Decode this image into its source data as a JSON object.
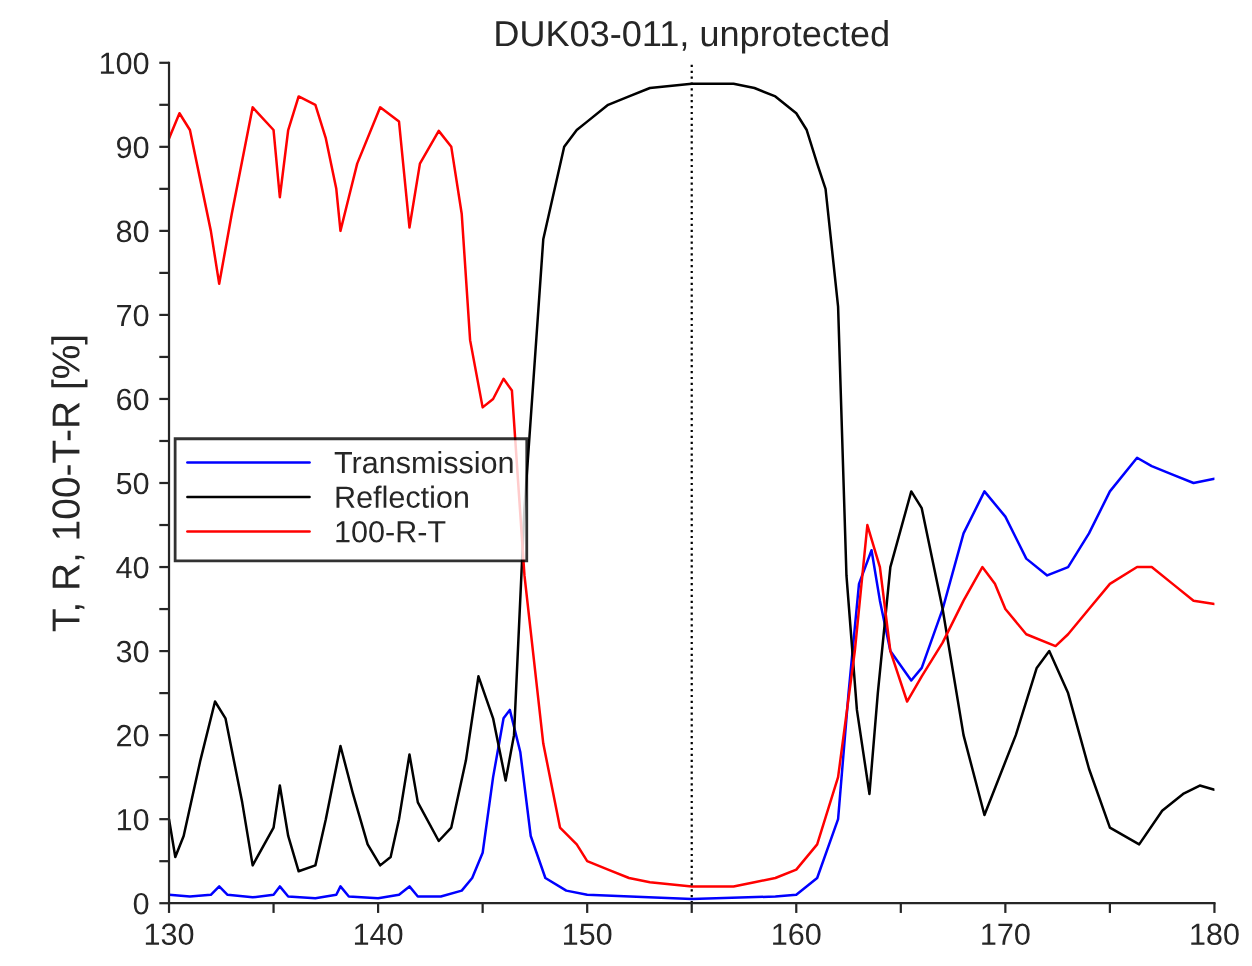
{
  "chart_data": {
    "type": "line",
    "title": "DUK03-011, unprotected",
    "ylabel": "T, R, 100-T-R [%]",
    "xlim": [
      130,
      180
    ],
    "ylim": [
      0,
      100
    ],
    "xticks": [
      130,
      {
        "value": 135,
        "label": null
      },
      140,
      {
        "value": 145,
        "label": null
      },
      150,
      {
        "value": 155,
        "label": null
      },
      160,
      {
        "value": 165,
        "label": null
      },
      170,
      {
        "value": 175,
        "label": null
      },
      180
    ],
    "yticks": [
      0,
      {
        "value": 5,
        "label": null
      },
      10,
      {
        "value": 15,
        "label": null
      },
      20,
      {
        "value": 25,
        "label": null
      },
      30,
      {
        "value": 35,
        "label": null
      },
      40,
      {
        "value": 45,
        "label": null
      },
      50,
      {
        "value": 55,
        "label": null
      },
      60,
      {
        "value": 65,
        "label": null
      },
      70,
      {
        "value": 75,
        "label": null
      },
      80,
      {
        "value": 85,
        "label": null
      },
      90,
      {
        "value": 95,
        "label": null
      },
      100
    ],
    "grid": false,
    "legend": "left",
    "marker": "none",
    "line_style": "solid",
    "ref_lines": [
      {
        "axis": "x",
        "value": 155,
        "label": null,
        "color": "#000000",
        "line_style": "dotted"
      }
    ],
    "series": [
      {
        "name": "Transmission",
        "color": "#0000ff",
        "x": [
          130,
          131,
          132,
          132.4,
          132.8,
          134,
          135,
          135.3,
          135.7,
          137,
          138,
          138.2,
          138.6,
          140,
          141,
          141.5,
          141.9,
          143,
          144,
          144.5,
          145,
          145.5,
          146,
          146.3,
          146.8,
          147.3,
          148,
          149,
          150,
          155,
          159,
          160,
          161,
          162,
          162.5,
          163,
          163.6,
          164,
          164.5,
          165.5,
          166,
          167,
          168,
          169,
          170,
          171,
          172,
          173,
          174,
          175,
          176.3,
          177,
          178,
          179,
          180
        ],
        "values": [
          1,
          0.8,
          1,
          2,
          1,
          0.7,
          1,
          2,
          0.8,
          0.6,
          1,
          2,
          0.8,
          0.6,
          1,
          2,
          0.8,
          0.8,
          1.5,
          3,
          6,
          15,
          22,
          23,
          18,
          8,
          3,
          1.5,
          1,
          0.5,
          0.8,
          1,
          3,
          10,
          25,
          38,
          42,
          36,
          30,
          26.5,
          28,
          35,
          44,
          49,
          46,
          41,
          39,
          40,
          44,
          49,
          53,
          52,
          51,
          50,
          50.5
        ]
      },
      {
        "name": "Reflection",
        "color": "#000000",
        "x": [
          130,
          130.3,
          130.7,
          131.5,
          132.2,
          132.7,
          133.5,
          134,
          135,
          135.3,
          135.7,
          136.2,
          137,
          137.5,
          138.2,
          138.8,
          139.5,
          140.1,
          140.6,
          141,
          141.5,
          141.9,
          142.9,
          143.5,
          144.2,
          144.8,
          145.5,
          146.1,
          146.5,
          147,
          147.9,
          148.9,
          149.5,
          150,
          151,
          152,
          153,
          155,
          157,
          158,
          159,
          160,
          160.5,
          161,
          161.4,
          162,
          162.4,
          162.9,
          163.5,
          163.9,
          164.5,
          165.5,
          166,
          167,
          168,
          169,
          170.5,
          171.5,
          172.1,
          173,
          174,
          175,
          176.4,
          177.5,
          178.5,
          179.3,
          180
        ],
        "values": [
          10,
          5.5,
          8,
          17,
          24,
          22,
          12,
          4.5,
          9,
          14,
          8,
          3.8,
          4.5,
          10,
          18.7,
          13,
          7,
          4.5,
          5.5,
          10,
          17.7,
          12,
          7.4,
          9,
          17,
          27,
          22,
          14.6,
          20,
          47,
          79,
          90,
          92,
          93,
          95,
          96,
          97,
          97.5,
          97.5,
          97,
          96,
          94,
          92,
          88,
          85,
          71,
          39,
          23,
          13,
          25,
          40,
          49,
          47,
          35,
          20,
          10.5,
          20,
          28,
          30,
          25,
          16,
          9,
          7,
          11,
          13,
          14,
          13.5
        ]
      },
      {
        "name": "100-R-T",
        "color": "#ff0000",
        "x": [
          130,
          130.5,
          131,
          132,
          132.4,
          133,
          134,
          135,
          135.3,
          135.7,
          136.2,
          137,
          137.5,
          138,
          138.2,
          138.6,
          139,
          140.1,
          141,
          141.5,
          142,
          142.9,
          143.5,
          144,
          144.4,
          145,
          145.5,
          146,
          146.4,
          147,
          147.9,
          148.7,
          149.5,
          150,
          151,
          152,
          153,
          155,
          157,
          158,
          159,
          160,
          161,
          162,
          162.8,
          163.4,
          164,
          164.5,
          165.3,
          166,
          167,
          168,
          168.9,
          169.5,
          170,
          171,
          172.4,
          173,
          174,
          175,
          176.3,
          177,
          178,
          179,
          180
        ],
        "values": [
          91,
          94,
          92,
          80,
          73.7,
          82,
          94.7,
          92,
          84,
          92,
          96,
          95,
          91,
          85,
          80,
          84,
          88,
          94.7,
          93,
          80.4,
          88,
          91.9,
          90,
          82,
          67,
          59,
          60,
          62.4,
          61,
          39,
          19,
          9,
          7,
          5,
          4,
          3,
          2.5,
          2,
          2,
          2.5,
          3,
          4,
          7,
          15,
          30,
          45,
          40,
          30,
          24,
          27,
          31,
          36,
          40,
          38,
          35,
          32,
          30.6,
          32,
          35,
          38,
          40,
          40,
          38,
          36,
          35.6
        ]
      }
    ]
  }
}
